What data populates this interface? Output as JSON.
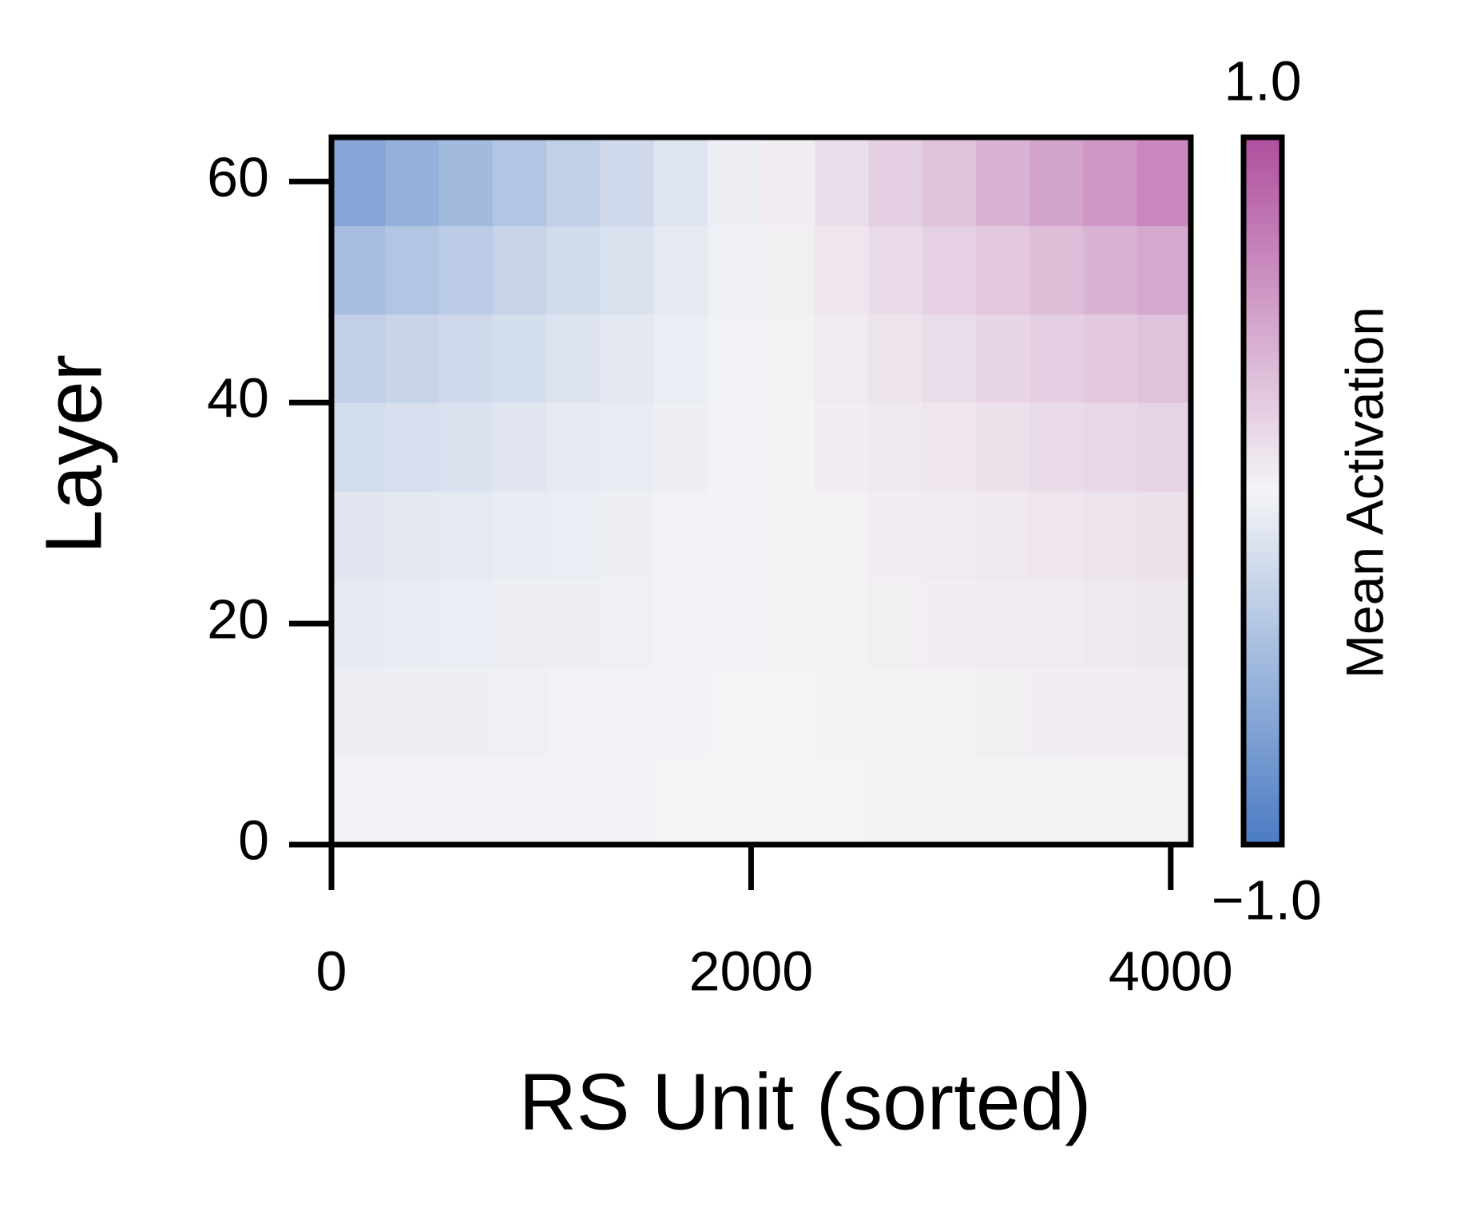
{
  "chart_data": {
    "type": "heatmap",
    "xlabel": "RS Unit (sorted)",
    "ylabel": "Layer",
    "colorbar_label": "Mean Activation",
    "xlim": [
      0,
      4096
    ],
    "ylim": [
      0,
      64
    ],
    "xticks": [
      0,
      2000,
      4000
    ],
    "yticks": [
      0,
      20,
      40,
      60
    ],
    "x_edges": [
      0,
      256,
      512,
      768,
      1024,
      1280,
      1536,
      1792,
      2048,
      2304,
      2560,
      2816,
      3072,
      3328,
      3584,
      3840,
      4096
    ],
    "y_edges": [
      0,
      8,
      16,
      24,
      32,
      40,
      48,
      56,
      64
    ],
    "z": [
      [
        -0.02,
        -0.02,
        -0.01,
        -0.01,
        -0.01,
        -0.01,
        0,
        0,
        0,
        0,
        0.01,
        0.01,
        0.01,
        0.01,
        0.02,
        0.02
      ],
      [
        -0.05,
        -0.04,
        -0.04,
        -0.03,
        -0.02,
        -0.02,
        -0.01,
        0,
        0,
        0.01,
        0.02,
        0.02,
        0.03,
        0.04,
        0.04,
        0.05
      ],
      [
        -0.08,
        -0.07,
        -0.06,
        -0.05,
        -0.04,
        -0.03,
        -0.02,
        -0.01,
        0.01,
        0.02,
        0.03,
        0.04,
        0.05,
        0.06,
        0.07,
        0.08
      ],
      [
        -0.12,
        -0.1,
        -0.09,
        -0.07,
        -0.06,
        -0.04,
        -0.02,
        -0.01,
        0.01,
        0.02,
        0.04,
        0.06,
        0.07,
        0.09,
        0.1,
        0.12
      ],
      [
        -0.2,
        -0.17,
        -0.15,
        -0.12,
        -0.09,
        -0.07,
        -0.04,
        -0.01,
        0.01,
        0.04,
        0.07,
        0.09,
        0.12,
        0.15,
        0.17,
        0.2
      ],
      [
        -0.3,
        -0.26,
        -0.22,
        -0.18,
        -0.14,
        -0.1,
        -0.06,
        -0.02,
        0.02,
        0.06,
        0.1,
        0.14,
        0.18,
        0.22,
        0.26,
        0.3
      ],
      [
        -0.45,
        -0.39,
        -0.33,
        -0.27,
        -0.21,
        -0.15,
        -0.09,
        -0.03,
        0.03,
        0.09,
        0.15,
        0.21,
        0.27,
        0.33,
        0.39,
        0.45
      ],
      [
        -0.65,
        -0.56,
        -0.48,
        -0.39,
        -0.3,
        -0.22,
        -0.13,
        -0.04,
        0.04,
        0.13,
        0.22,
        0.3,
        0.39,
        0.48,
        0.56,
        0.65
      ]
    ],
    "clim": [
      -1,
      1
    ],
    "colormap": [
      "#4a7bc4",
      "#f4f4f6",
      "#b04e9e"
    ],
    "colorbar_ticks": [
      {
        "value": 1,
        "label": "1.0"
      },
      {
        "value": -1,
        "label": "−1.0"
      }
    ]
  }
}
